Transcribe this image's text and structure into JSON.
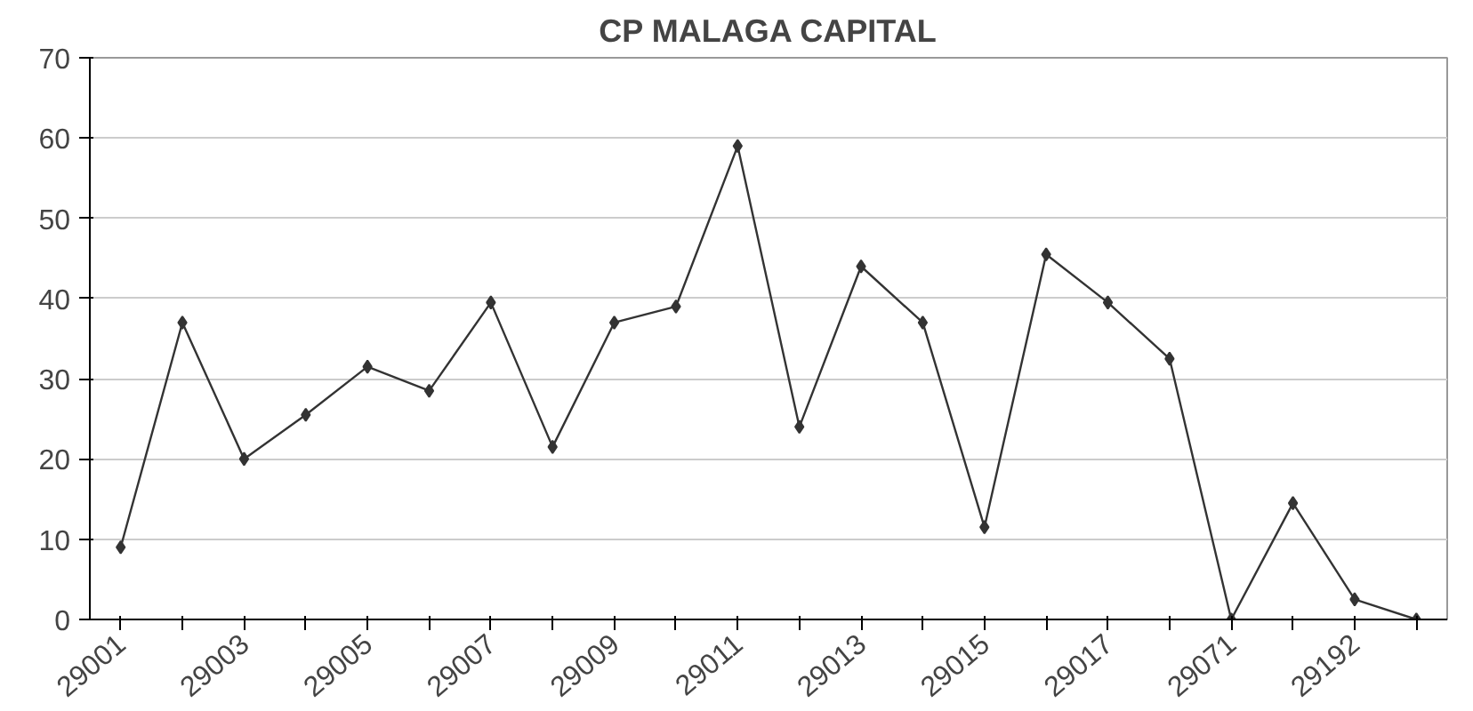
{
  "chart_data": {
    "type": "line",
    "title": "CP MALAGA CAPITAL",
    "categories": [
      "29001",
      null,
      "29003",
      null,
      "29005",
      null,
      "29007",
      null,
      "29009",
      null,
      "29011",
      null,
      "29013",
      null,
      "29015",
      null,
      "29017",
      null,
      "29071",
      null,
      "29192",
      null
    ],
    "series": [
      {
        "color": "#333333",
        "values": [
          9,
          37,
          20,
          25.5,
          31.5,
          28.5,
          39.5,
          21.5,
          37,
          39,
          59,
          24,
          44,
          37,
          11.5,
          45.5,
          39.5,
          32.5,
          0,
          14.5,
          2.5,
          0
        ]
      }
    ],
    "ylim": [
      0,
      70
    ],
    "yticks": [
      0,
      10,
      20,
      30,
      40,
      50,
      60,
      70
    ],
    "grid": "y",
    "marker": "diamond",
    "line_style": "solid"
  }
}
